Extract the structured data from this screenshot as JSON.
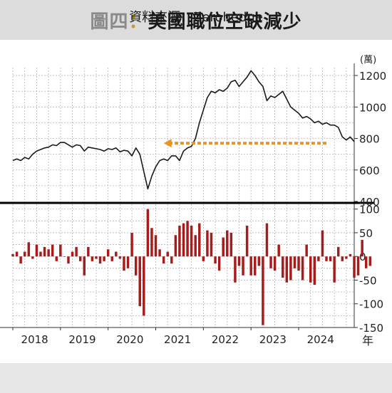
{
  "title": {
    "lead": "圖四",
    "separator": "：",
    "main": "美國職位空缺減少"
  },
  "source": "資料來源：Zerohedge",
  "colors": {
    "line": "#1a1a1a",
    "bars": "#a61c1c",
    "arrow": "#e8961e",
    "divider": "#000000",
    "grid": "#b5b5b5"
  },
  "chart_data": [
    {
      "type": "line",
      "unit_label": "(萬)",
      "ylim": [
        400,
        1250
      ],
      "y_ticks": [
        400,
        600,
        800,
        1000,
        1200
      ],
      "grid": true,
      "x_start": "2018-01",
      "x_step": "month",
      "values": [
        660,
        670,
        660,
        680,
        670,
        700,
        720,
        730,
        740,
        745,
        760,
        755,
        775,
        775,
        760,
        745,
        760,
        755,
        720,
        745,
        740,
        735,
        730,
        720,
        735,
        730,
        740,
        715,
        725,
        720,
        690,
        740,
        700,
        590,
        480,
        560,
        620,
        660,
        670,
        660,
        690,
        690,
        660,
        720,
        740,
        750,
        800,
        900,
        980,
        1060,
        1100,
        1090,
        1110,
        1100,
        1120,
        1160,
        1170,
        1130,
        1160,
        1190,
        1230,
        1200,
        1160,
        1130,
        1040,
        1070,
        1060,
        1080,
        1100,
        1050,
        1000,
        980,
        960,
        930,
        940,
        925,
        900,
        910,
        890,
        900,
        885,
        885,
        870,
        810,
        790,
        810,
        780
      ],
      "annotation": {
        "type": "dashed-arrow",
        "from": "2024-08",
        "to": "2021-03",
        "y": 770
      }
    },
    {
      "type": "bar",
      "ylim": [
        -150,
        110
      ],
      "y_ticks": [
        -150,
        -100,
        -50,
        0,
        50,
        100
      ],
      "grid": true,
      "x_start": "2018-01",
      "x_step": "month",
      "values": [
        5,
        10,
        -15,
        10,
        30,
        -5,
        25,
        10,
        20,
        15,
        25,
        -10,
        25,
        0,
        -15,
        10,
        20,
        -10,
        -40,
        20,
        -10,
        -5,
        -15,
        -10,
        15,
        -10,
        10,
        -5,
        -30,
        -25,
        50,
        -40,
        -105,
        -125,
        100,
        60,
        45,
        15,
        -15,
        10,
        -15,
        45,
        65,
        70,
        75,
        65,
        45,
        70,
        -10,
        55,
        50,
        -15,
        -30,
        40,
        55,
        50,
        -55,
        -20,
        -40,
        65,
        -40,
        -40,
        -20,
        -145,
        70,
        -25,
        -30,
        25,
        -45,
        -55,
        -50,
        -25,
        -30,
        -50,
        25,
        -55,
        -60,
        -10,
        55,
        -10,
        -10,
        -55,
        20,
        -10,
        -5,
        5,
        -45,
        -40,
        35,
        -25,
        -20
      ],
      "x_tick_labels": [
        "2018",
        "2019",
        "2020",
        "2021",
        "2022",
        "2023",
        "2024"
      ],
      "x_axis_label": "年"
    }
  ]
}
